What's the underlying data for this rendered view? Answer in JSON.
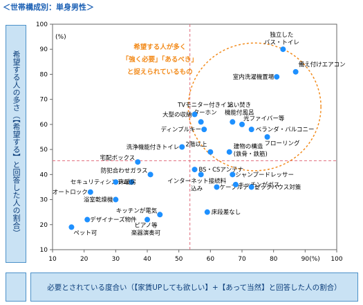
{
  "header": "＜世帯構成別：単身男性＞",
  "y_axis_title": "希望する人の多さ（【希望する】と回答した人の割合）",
  "x_axis_title": "必要とされている度合い（【家賃UPしても欲しい】+【あって当然】と回答した人の割合）",
  "colors": {
    "point": "#1e90ff",
    "guide": "#e06a7a",
    "ellipse": "#f28a1a",
    "box_fill": "#c9e2f4",
    "box_border": "#4a90c8"
  },
  "chart_data": {
    "type": "scatter",
    "title": "",
    "xlabel": "必要とされている度合い（【家賃UPしても欲しい】+【あって当然】と回答した人の割合）",
    "ylabel": "希望する人の多さ（【希望する】と回答した人の割合）",
    "xlim": [
      10,
      100
    ],
    "ylim": [
      10,
      100
    ],
    "x_ticks": [
      10,
      20,
      30,
      40,
      50,
      60,
      70,
      80,
      90,
      100
    ],
    "y_ticks": [
      10,
      20,
      30,
      40,
      50,
      60,
      70,
      80,
      90,
      100
    ],
    "x_unit": "(%)",
    "y_unit": "(%)",
    "guide_lines": {
      "x": 53.5,
      "y": 45.5
    },
    "annotation": {
      "lines": [
        "希望する人が多く",
        "「強く必要」「あるべき」",
        "と捉えられているもの"
      ]
    },
    "points": [
      {
        "label": "独立した\nバス・トイレ",
        "x": 83,
        "y": 90
      },
      {
        "label": "備え付けエアコン",
        "x": 87,
        "y": 81
      },
      {
        "label": "室内洗濯機置場",
        "x": 81,
        "y": 79
      },
      {
        "label": "TVモニター付きイン\nターホン",
        "x": 57,
        "y": 61
      },
      {
        "label": "追い焚き\n機能付風呂",
        "x": 67,
        "y": 61
      },
      {
        "label": "大型の収納",
        "x": 55,
        "y": 64
      },
      {
        "label": "光ファイバー等",
        "x": 70,
        "y": 60
      },
      {
        "label": "ディンプルキー",
        "x": 58,
        "y": 58
      },
      {
        "label": "ベランダ・バルコニー",
        "x": 73,
        "y": 58
      },
      {
        "label": "フローリング",
        "x": 78,
        "y": 55
      },
      {
        "label": "洗浄機能付きトイレ",
        "x": 51,
        "y": 51
      },
      {
        "label": "建物の構造\n(鉄骨・鉄筋)",
        "x": 66,
        "y": 49
      },
      {
        "label": "2階以上",
        "x": 60,
        "y": 49
      },
      {
        "label": "宅配ボックス",
        "x": 37,
        "y": 45
      },
      {
        "label": "BS・CSアンテナ",
        "x": 55,
        "y": 42
      },
      {
        "label": "シャンプードレッサー",
        "x": 67,
        "y": 40
      },
      {
        "label": "防犯合わせガラス",
        "x": 41,
        "y": 40
      },
      {
        "label": "セキュリティシステム",
        "x": 35,
        "y": 37
      },
      {
        "label": "床暖房",
        "x": 30,
        "y": 37
      },
      {
        "label": "ケーブルテレビ",
        "x": 62,
        "y": 35
      },
      {
        "label": "インターネット接続料\n込み",
        "x": 57,
        "y": 40
      },
      {
        "label": "キッチンがガス",
        "x": 68,
        "y": 36
      },
      {
        "label": "シックハウス対策",
        "x": 73,
        "y": 35
      },
      {
        "label": "オートロック",
        "x": 22,
        "y": 33
      },
      {
        "label": "浴室乾燥機",
        "x": 30,
        "y": 30
      },
      {
        "label": "キッチンが電気",
        "x": 44,
        "y": 24
      },
      {
        "label": "床段差なし",
        "x": 59,
        "y": 25
      },
      {
        "label": "デザイナーズ物件",
        "x": 21,
        "y": 22
      },
      {
        "label": "ピアノ等\n楽器演奏可",
        "x": 40,
        "y": 22
      },
      {
        "label": "ペット可",
        "x": 16,
        "y": 19
      }
    ]
  }
}
